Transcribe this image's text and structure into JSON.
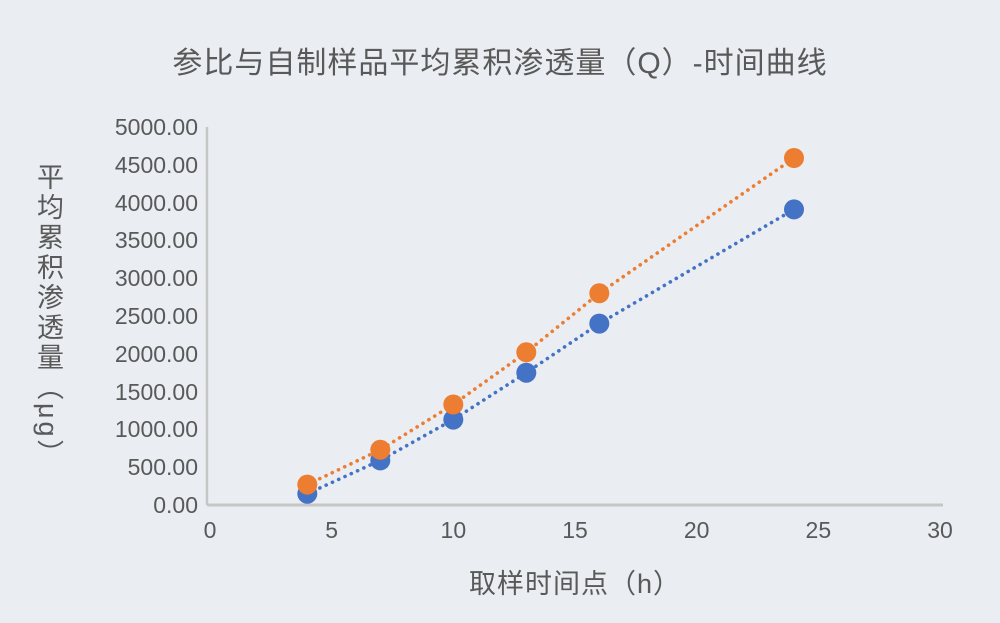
{
  "chart": {
    "title": "参比与自制样品平均累积渗透量（Q）-时间曲线",
    "x_axis_title": "取样时间点（h）",
    "y_axis_title": "平均累积渗透量（μg）",
    "colors": {
      "background": "#eaedf1",
      "text": "#595959",
      "axis_line": "#c6c6c6",
      "series_blue": "#4472c4",
      "series_orange": "#ed7d31"
    }
  },
  "chart_data": {
    "type": "scatter",
    "title": "参比与自制样品平均累积渗透量（Q）-时间曲线",
    "xlabel": "取样时间点（h）",
    "ylabel": "平均累积渗透量（μg）",
    "x": [
      4,
      7,
      10,
      13,
      16,
      24
    ],
    "series": [
      {
        "name": "blue-series",
        "color": "#4472c4",
        "values": [
          150,
          590,
          1130,
          1750,
          2400,
          3910
        ],
        "line_style": "dotted",
        "marker": "circle"
      },
      {
        "name": "orange-series",
        "color": "#ed7d31",
        "values": [
          270,
          730,
          1330,
          2020,
          2800,
          4590
        ],
        "line_style": "dotted",
        "marker": "circle"
      }
    ],
    "xlim": [
      0,
      30
    ],
    "ylim": [
      0,
      5000
    ],
    "x_tick_labels": [
      "0",
      "5",
      "10",
      "15",
      "20",
      "25",
      "30"
    ],
    "y_tick_labels": [
      "0.00",
      "500.00",
      "1000.00",
      "1500.00",
      "2000.00",
      "2500.00",
      "3000.00",
      "3500.00",
      "4000.00",
      "4500.00",
      "5000.00"
    ],
    "x_tick_values": [
      0,
      5,
      10,
      15,
      20,
      25,
      30
    ],
    "y_tick_values": [
      0,
      500,
      1000,
      1500,
      2000,
      2500,
      3000,
      3500,
      4000,
      4500,
      5000
    ],
    "grid": false,
    "legend": "none"
  }
}
